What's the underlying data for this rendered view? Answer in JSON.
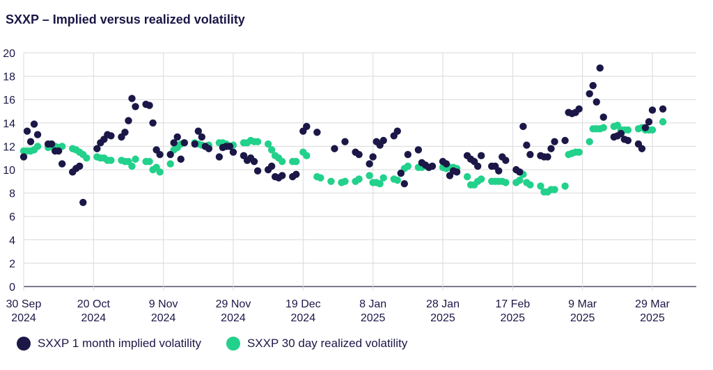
{
  "chart_data": {
    "type": "scatter",
    "title": "SXXP – Implied versus realized volatility",
    "xlabel": "",
    "ylabel": "",
    "ylim": [
      0,
      20
    ],
    "yticks": [
      0,
      2,
      4,
      6,
      8,
      10,
      12,
      14,
      16,
      18,
      20
    ],
    "x_unit": "days since 30 Sep 2024",
    "xlim": [
      0,
      183
    ],
    "xticks": [
      {
        "x": 0,
        "line1": "30 Sep",
        "line2": "2024"
      },
      {
        "x": 20,
        "line1": "20 Oct",
        "line2": "2024"
      },
      {
        "x": 40,
        "line1": "9 Nov",
        "line2": "2024"
      },
      {
        "x": 60,
        "line1": "29 Nov",
        "line2": "2024"
      },
      {
        "x": 80,
        "line1": "19 Dec",
        "line2": "2024"
      },
      {
        "x": 100,
        "line1": "8 Jan",
        "line2": "2025"
      },
      {
        "x": 120,
        "line1": "28 Jan",
        "line2": "2025"
      },
      {
        "x": 140,
        "line1": "17 Feb",
        "line2": "2025"
      },
      {
        "x": 160,
        "line1": "9 Mar",
        "line2": "2025"
      },
      {
        "x": 180,
        "line1": "29 Mar",
        "line2": "2025"
      }
    ],
    "grid": true,
    "legend_position": "bottom-left",
    "series": [
      {
        "name": "SXXP 1 month implied volatility",
        "color": "#1b1747",
        "points": [
          [
            0,
            11.1
          ],
          [
            1,
            13.3
          ],
          [
            2,
            12.4
          ],
          [
            3,
            13.9
          ],
          [
            4,
            13.0
          ],
          [
            7,
            12.2
          ],
          [
            8,
            12.2
          ],
          [
            9,
            11.6
          ],
          [
            10,
            11.6
          ],
          [
            11,
            10.5
          ],
          [
            14,
            9.8
          ],
          [
            15,
            10.1
          ],
          [
            16,
            10.3
          ],
          [
            17,
            7.2
          ],
          [
            21,
            11.8
          ],
          [
            22,
            12.3
          ],
          [
            23,
            12.6
          ],
          [
            24,
            13.0
          ],
          [
            25,
            12.9
          ],
          [
            28,
            12.8
          ],
          [
            29,
            13.2
          ],
          [
            30,
            14.2
          ],
          [
            31,
            16.1
          ],
          [
            32,
            15.4
          ],
          [
            35,
            15.6
          ],
          [
            36,
            15.5
          ],
          [
            37,
            14.0
          ],
          [
            38,
            11.7
          ],
          [
            39,
            11.3
          ],
          [
            42,
            11.3
          ],
          [
            43,
            12.3
          ],
          [
            44,
            12.8
          ],
          [
            45,
            10.9
          ],
          [
            46,
            12.3
          ],
          [
            49,
            12.2
          ],
          [
            50,
            13.3
          ],
          [
            51,
            12.8
          ],
          [
            52,
            12.0
          ],
          [
            53,
            11.8
          ],
          [
            56,
            11.1
          ],
          [
            57,
            11.9
          ],
          [
            58,
            12.0
          ],
          [
            59,
            12.0
          ],
          [
            60,
            11.5
          ],
          [
            63,
            11.2
          ],
          [
            64,
            10.8
          ],
          [
            65,
            11.0
          ],
          [
            66,
            10.7
          ],
          [
            67,
            9.9
          ],
          [
            70,
            10.0
          ],
          [
            71,
            10.3
          ],
          [
            72,
            9.4
          ],
          [
            73,
            9.3
          ],
          [
            74,
            9.5
          ],
          [
            77,
            9.4
          ],
          [
            78,
            9.6
          ],
          [
            80,
            13.3
          ],
          [
            81,
            13.7
          ],
          [
            84,
            13.2
          ],
          [
            89,
            11.8
          ],
          [
            92,
            12.4
          ],
          [
            95,
            11.5
          ],
          [
            96,
            11.3
          ],
          [
            99,
            10.5
          ],
          [
            100,
            11.1
          ],
          [
            101,
            12.4
          ],
          [
            102,
            12.1
          ],
          [
            103,
            12.5
          ],
          [
            106,
            12.9
          ],
          [
            107,
            13.3
          ],
          [
            108,
            9.7
          ],
          [
            109,
            8.8
          ],
          [
            110,
            11.3
          ],
          [
            113,
            11.7
          ],
          [
            114,
            10.6
          ],
          [
            115,
            10.4
          ],
          [
            116,
            10.2
          ],
          [
            117,
            10.3
          ],
          [
            120,
            10.7
          ],
          [
            121,
            10.5
          ],
          [
            122,
            9.5
          ],
          [
            123,
            9.9
          ],
          [
            124,
            9.8
          ],
          [
            127,
            11.2
          ],
          [
            128,
            10.9
          ],
          [
            129,
            10.7
          ],
          [
            130,
            10.3
          ],
          [
            131,
            11.2
          ],
          [
            134,
            10.3
          ],
          [
            135,
            10.3
          ],
          [
            136,
            9.9
          ],
          [
            137,
            11.1
          ],
          [
            138,
            10.8
          ],
          [
            141,
            10.0
          ],
          [
            142,
            9.8
          ],
          [
            143,
            13.7
          ],
          [
            144,
            12.1
          ],
          [
            145,
            11.3
          ],
          [
            148,
            11.2
          ],
          [
            149,
            11.1
          ],
          [
            150,
            11.1
          ],
          [
            151,
            11.8
          ],
          [
            152,
            12.4
          ],
          [
            155,
            12.5
          ],
          [
            156,
            14.9
          ],
          [
            157,
            14.8
          ],
          [
            158,
            14.9
          ],
          [
            159,
            15.2
          ],
          [
            162,
            16.5
          ],
          [
            163,
            17.2
          ],
          [
            164,
            15.8
          ],
          [
            165,
            18.7
          ],
          [
            166,
            14.5
          ],
          [
            169,
            12.8
          ],
          [
            170,
            12.9
          ],
          [
            171,
            13.1
          ],
          [
            172,
            12.6
          ],
          [
            173,
            12.5
          ],
          [
            176,
            12.2
          ],
          [
            177,
            11.8
          ],
          [
            178,
            13.6
          ],
          [
            179,
            14.1
          ],
          [
            180,
            15.1
          ],
          [
            183,
            15.2
          ]
        ]
      },
      {
        "name": "SXXP 30 day realized volatility",
        "color": "#22d18b",
        "points": [
          [
            0,
            11.6
          ],
          [
            1,
            11.6
          ],
          [
            2,
            11.6
          ],
          [
            3,
            11.7
          ],
          [
            4,
            12.0
          ],
          [
            7,
            11.9
          ],
          [
            8,
            12.0
          ],
          [
            9,
            12.0
          ],
          [
            10,
            11.9
          ],
          [
            11,
            12.0
          ],
          [
            14,
            11.8
          ],
          [
            15,
            11.7
          ],
          [
            16,
            11.5
          ],
          [
            17,
            11.3
          ],
          [
            18,
            11.0
          ],
          [
            21,
            11.1
          ],
          [
            22,
            11.0
          ],
          [
            23,
            11.0
          ],
          [
            24,
            10.8
          ],
          [
            25,
            10.8
          ],
          [
            28,
            10.8
          ],
          [
            29,
            10.7
          ],
          [
            30,
            10.7
          ],
          [
            31,
            10.3
          ],
          [
            32,
            10.9
          ],
          [
            35,
            10.7
          ],
          [
            36,
            10.7
          ],
          [
            37,
            10.0
          ],
          [
            38,
            10.2
          ],
          [
            39,
            9.8
          ],
          [
            42,
            10.5
          ],
          [
            43,
            11.7
          ],
          [
            44,
            11.9
          ],
          [
            45,
            12.2
          ],
          [
            46,
            12.3
          ],
          [
            49,
            12.3
          ],
          [
            50,
            12.2
          ],
          [
            51,
            12.1
          ],
          [
            52,
            12.0
          ],
          [
            53,
            12.1
          ],
          [
            56,
            12.3
          ],
          [
            57,
            12.3
          ],
          [
            58,
            12.2
          ],
          [
            59,
            12.0
          ],
          [
            60,
            12.1
          ],
          [
            63,
            12.3
          ],
          [
            64,
            12.3
          ],
          [
            65,
            12.5
          ],
          [
            66,
            12.4
          ],
          [
            67,
            12.4
          ],
          [
            70,
            12.2
          ],
          [
            71,
            11.7
          ],
          [
            72,
            11.2
          ],
          [
            73,
            11.0
          ],
          [
            74,
            10.7
          ],
          [
            77,
            10.7
          ],
          [
            78,
            10.7
          ],
          [
            80,
            11.5
          ],
          [
            81,
            11.2
          ],
          [
            84,
            9.4
          ],
          [
            85,
            9.3
          ],
          [
            88,
            9.0
          ],
          [
            91,
            8.9
          ],
          [
            92,
            9.0
          ],
          [
            95,
            9.0
          ],
          [
            96,
            9.2
          ],
          [
            99,
            9.5
          ],
          [
            100,
            8.9
          ],
          [
            101,
            8.9
          ],
          [
            102,
            8.8
          ],
          [
            103,
            9.3
          ],
          [
            106,
            9.2
          ],
          [
            107,
            9.1
          ],
          [
            108,
            9.7
          ],
          [
            109,
            10.1
          ],
          [
            110,
            10.3
          ],
          [
            113,
            10.2
          ],
          [
            114,
            10.2
          ],
          [
            115,
            10.3
          ],
          [
            116,
            10.2
          ],
          [
            117,
            10.3
          ],
          [
            120,
            10.2
          ],
          [
            121,
            10.1
          ],
          [
            122,
            10.2
          ],
          [
            123,
            10.2
          ],
          [
            124,
            10.1
          ],
          [
            127,
            9.4
          ],
          [
            128,
            8.7
          ],
          [
            129,
            8.7
          ],
          [
            130,
            9.0
          ],
          [
            131,
            9.2
          ],
          [
            134,
            9.0
          ],
          [
            135,
            9.0
          ],
          [
            136,
            9.0
          ],
          [
            137,
            9.0
          ],
          [
            138,
            8.9
          ],
          [
            141,
            8.9
          ],
          [
            142,
            9.1
          ],
          [
            143,
            9.6
          ],
          [
            144,
            8.9
          ],
          [
            145,
            8.7
          ],
          [
            148,
            8.6
          ],
          [
            149,
            8.1
          ],
          [
            150,
            8.1
          ],
          [
            151,
            8.3
          ],
          [
            152,
            8.3
          ],
          [
            155,
            8.6
          ],
          [
            156,
            11.3
          ],
          [
            157,
            11.4
          ],
          [
            158,
            11.5
          ],
          [
            159,
            11.5
          ],
          [
            162,
            12.4
          ],
          [
            163,
            13.5
          ],
          [
            164,
            13.5
          ],
          [
            165,
            13.5
          ],
          [
            166,
            13.6
          ],
          [
            169,
            13.7
          ],
          [
            170,
            13.8
          ],
          [
            171,
            13.4
          ],
          [
            172,
            13.4
          ],
          [
            173,
            13.4
          ],
          [
            176,
            13.5
          ],
          [
            177,
            13.6
          ],
          [
            178,
            13.4
          ],
          [
            179,
            13.4
          ],
          [
            180,
            13.4
          ],
          [
            183,
            14.1
          ]
        ]
      }
    ]
  }
}
